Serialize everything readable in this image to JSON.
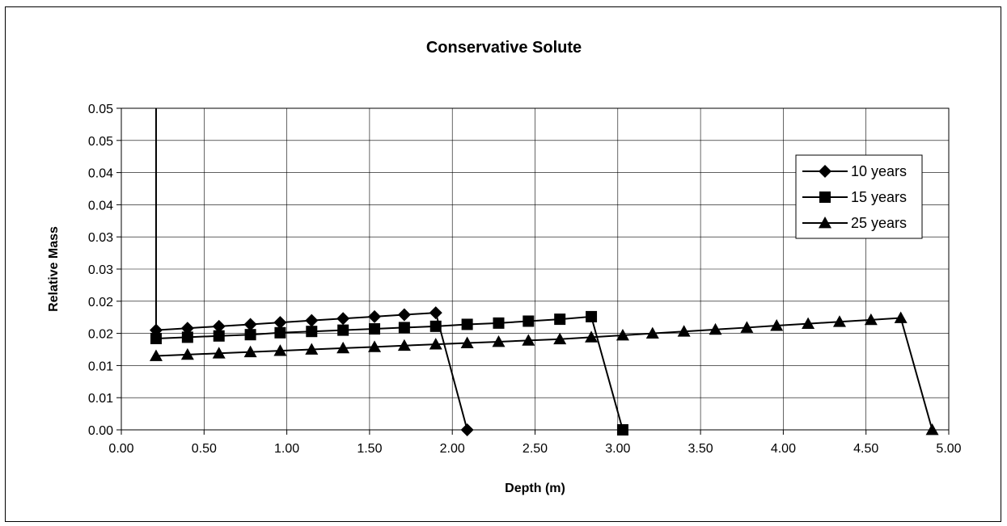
{
  "chart_data": {
    "type": "line",
    "title": "Conservative Solute",
    "xlabel": "Depth (m)",
    "ylabel": "Relative Mass",
    "xlim": [
      0,
      5
    ],
    "ylim": [
      0,
      0.05
    ],
    "grid": true,
    "legend_position": "top-right",
    "x_ticks": [
      {
        "value": 0.0,
        "label": "0.00"
      },
      {
        "value": 0.5,
        "label": "0.50"
      },
      {
        "value": 1.0,
        "label": "1.00"
      },
      {
        "value": 1.5,
        "label": "1.50"
      },
      {
        "value": 2.0,
        "label": "2.00"
      },
      {
        "value": 2.5,
        "label": "2.50"
      },
      {
        "value": 3.0,
        "label": "3.00"
      },
      {
        "value": 3.5,
        "label": "3.50"
      },
      {
        "value": 4.0,
        "label": "4.00"
      },
      {
        "value": 4.5,
        "label": "4.50"
      },
      {
        "value": 5.0,
        "label": "5.00"
      }
    ],
    "y_ticks": [
      {
        "value": 0.0,
        "label": "0.00"
      },
      {
        "value": 0.005,
        "label": "0.01"
      },
      {
        "value": 0.01,
        "label": "0.01"
      },
      {
        "value": 0.015,
        "label": "0.02"
      },
      {
        "value": 0.02,
        "label": "0.02"
      },
      {
        "value": 0.025,
        "label": "0.03"
      },
      {
        "value": 0.03,
        "label": "0.03"
      },
      {
        "value": 0.035,
        "label": "0.04"
      },
      {
        "value": 0.04,
        "label": "0.04"
      },
      {
        "value": 0.045,
        "label": "0.05"
      },
      {
        "value": 0.05,
        "label": "0.05"
      }
    ],
    "series": [
      {
        "name": "10 years",
        "marker": "diamond",
        "x": [
          0.21,
          0.21,
          0.4,
          0.59,
          0.78,
          0.96,
          1.15,
          1.34,
          1.53,
          1.71,
          1.9,
          2.09
        ],
        "y": [
          0.05,
          0.0155,
          0.0158,
          0.0161,
          0.0164,
          0.0167,
          0.017,
          0.0173,
          0.0176,
          0.0179,
          0.0182,
          0.0
        ]
      },
      {
        "name": "15 years",
        "marker": "square",
        "x": [
          0.21,
          0.4,
          0.59,
          0.78,
          0.96,
          1.15,
          1.34,
          1.53,
          1.71,
          1.9,
          2.09,
          2.28,
          2.46,
          2.65,
          2.84,
          3.03
        ],
        "y": [
          0.0142,
          0.0144,
          0.0146,
          0.0148,
          0.0151,
          0.0153,
          0.0155,
          0.0157,
          0.0159,
          0.0161,
          0.0164,
          0.0166,
          0.0169,
          0.0172,
          0.0176,
          0.0
        ]
      },
      {
        "name": "25 years",
        "marker": "triangle",
        "x": [
          0.21,
          0.4,
          0.59,
          0.78,
          0.96,
          1.15,
          1.34,
          1.53,
          1.71,
          1.9,
          2.09,
          2.28,
          2.46,
          2.65,
          2.84,
          3.03,
          3.21,
          3.4,
          3.59,
          3.78,
          3.96,
          4.15,
          4.34,
          4.53,
          4.71,
          4.9
        ],
        "y": [
          0.0115,
          0.0117,
          0.0119,
          0.0121,
          0.0123,
          0.0125,
          0.0127,
          0.0129,
          0.0131,
          0.0133,
          0.0135,
          0.0137,
          0.0139,
          0.0141,
          0.0144,
          0.0147,
          0.015,
          0.0153,
          0.0156,
          0.0159,
          0.0162,
          0.0165,
          0.0168,
          0.0171,
          0.0174,
          0.0
        ]
      }
    ]
  }
}
